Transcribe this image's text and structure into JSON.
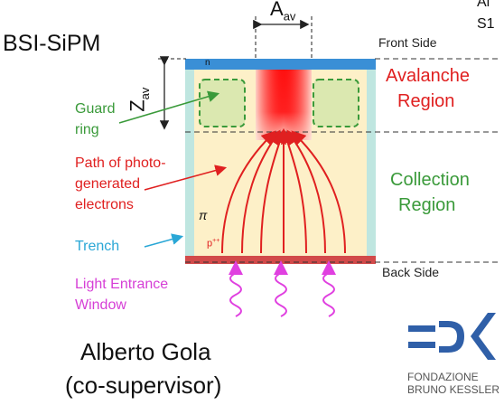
{
  "title": "BSI-SiPM",
  "corner_text": {
    "line1": "Al",
    "line2": "S1"
  },
  "labels": {
    "a_av": {
      "main": "A",
      "sub": "av"
    },
    "z_av": {
      "main": "Z",
      "sub": "av"
    },
    "front_side": "Front Side",
    "back_side": "Back Side",
    "n_layer": "n",
    "pi": "π",
    "p_plus": "p",
    "p_plus_sup": "++",
    "avalanche": [
      "Avalanche",
      "Region"
    ],
    "collection": [
      "Collection",
      "Region"
    ],
    "guard_ring": [
      "Guard",
      "ring"
    ],
    "path": [
      "Path of photo-",
      "generated",
      "electrons"
    ],
    "trench": "Trench",
    "light_entrance": [
      "Light Entrance",
      "Window"
    ]
  },
  "person": {
    "name": "Alberto Gola",
    "role": "(co-supervisor)"
  },
  "logo": {
    "line1": "FONDAZIONE",
    "line2": "BRUNO KESSLER"
  },
  "colors": {
    "avalanche_text": "#e02020",
    "collection_text": "#3a9a3a",
    "guard_text": "#3a9a3a",
    "path_text": "#e02020",
    "trench_text": "#2aa7d6",
    "light_text": "#d63fd6",
    "substrate": "#fdf0c8",
    "trench": "#bfe6e0",
    "n_layer": "#3a8fd6",
    "back_layer": "#d24a4a",
    "logo_blue": "#2f5fa8",
    "photon": "#e040e0"
  },
  "icons": [
    "electron-path-arrows",
    "photon-wave-icon",
    "fbk-logo-icon"
  ]
}
